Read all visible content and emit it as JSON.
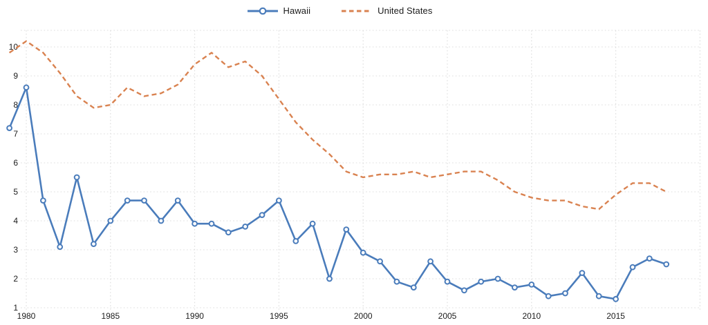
{
  "colors": {
    "hawaii_blue": "#4a7cbb",
    "us_orange": "#d98250",
    "gridline": "#dcdcdc",
    "tick_text": "#1c1c1c",
    "marker_fill": "#ffffff"
  },
  "legend": {
    "items": [
      {
        "label": "Hawaii",
        "swatch": "solid-line-circle-marker"
      },
      {
        "label": "United States",
        "swatch": "dashed-line"
      }
    ]
  },
  "chart_data": {
    "type": "line",
    "title": "",
    "xlabel": "",
    "ylabel": "",
    "grid": "dotted",
    "legend_position": "top-center",
    "ylim": [
      1,
      10
    ],
    "x": [
      1979,
      1980,
      1981,
      1982,
      1983,
      1984,
      1985,
      1986,
      1987,
      1988,
      1989,
      1990,
      1991,
      1992,
      1993,
      1994,
      1995,
      1996,
      1997,
      1998,
      1999,
      2000,
      2001,
      2002,
      2003,
      2004,
      2005,
      2006,
      2007,
      2008,
      2009,
      2010,
      2011,
      2012,
      2013,
      2014,
      2015,
      2016,
      2017,
      2018
    ],
    "series": [
      {
        "name": "Hawaii",
        "color": "#4a7cbb",
        "line": "solid",
        "marker": "circle",
        "values": [
          7.2,
          8.6,
          4.7,
          3.1,
          5.5,
          3.2,
          4.0,
          4.7,
          4.7,
          4.0,
          4.7,
          3.9,
          3.9,
          3.6,
          3.8,
          4.2,
          4.7,
          3.3,
          3.9,
          2.0,
          3.7,
          2.9,
          2.6,
          1.9,
          1.7,
          2.6,
          1.9,
          1.6,
          1.9,
          2.0,
          1.7,
          1.8,
          1.4,
          1.5,
          2.2,
          1.4,
          1.3,
          2.4,
          2.7,
          2.5
        ]
      },
      {
        "name": "United States",
        "color": "#d98250",
        "line": "dashed",
        "marker": "none",
        "values": [
          9.8,
          10.2,
          9.8,
          9.1,
          8.3,
          7.9,
          8.0,
          8.6,
          8.3,
          8.4,
          8.7,
          9.4,
          9.8,
          9.3,
          9.5,
          9.0,
          8.2,
          7.4,
          6.8,
          6.3,
          5.7,
          5.5,
          5.6,
          5.6,
          5.7,
          5.5,
          5.6,
          5.7,
          5.7,
          5.4,
          5.0,
          4.8,
          4.7,
          4.7,
          4.5,
          4.4,
          4.9,
          5.3,
          5.3,
          5.0
        ]
      }
    ],
    "x_ticks": [
      1980,
      1985,
      1990,
      1995,
      2000,
      2005,
      2010,
      2015
    ],
    "x_tick_labels": [
      "1980",
      "1985",
      "1990",
      "1995",
      "2000",
      "2005",
      "2010",
      "2015"
    ],
    "y_ticks": [
      1,
      2,
      3,
      4,
      5,
      6,
      7,
      8,
      9,
      10
    ],
    "y_tick_labels": [
      "1",
      "2",
      "3",
      "4",
      "5",
      "6",
      "7",
      "8",
      "9",
      "10"
    ]
  }
}
